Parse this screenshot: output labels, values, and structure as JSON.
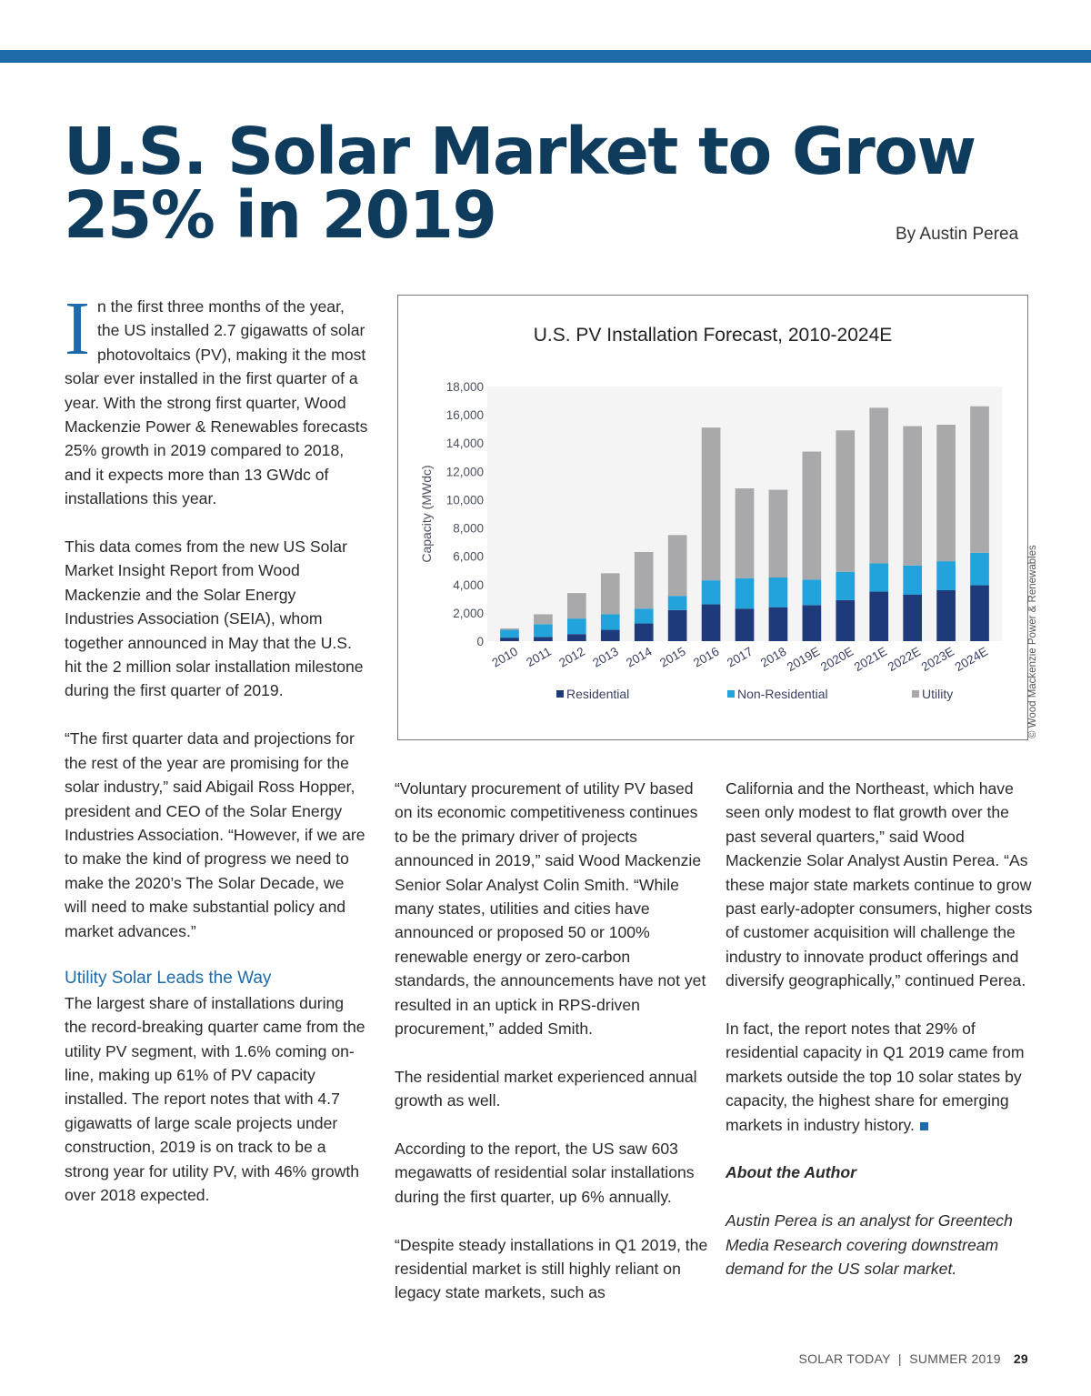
{
  "header": {
    "title_line1": "U.S. Solar Market to Grow",
    "title_line2": "25% in 2019",
    "byline": "By Austin Perea"
  },
  "column1": {
    "dropcap": "I",
    "para1": "n the first three months of the year, the US installed 2.7 gigawatts of solar photovoltaics (PV), making it the most solar ever installed in the first quarter of a year. With the strong first quarter, Wood Mackenzie Power & Renewables forecasts 25% growth in 2019 compared to 2018, and it expects more than 13 GWdc of installations this year.",
    "para2": "This data comes from the new US Solar Market Insight Report from Wood Mackenzie and the Solar Energy Industries Association (SEIA), whom together announced in May that the U.S. hit the 2 million solar installation milestone during the first quarter of 2019.",
    "para3": "“The first quarter data and projections for the rest of the year are promising for the solar industry,” said Abigail Ross Hopper, president and CEO of the Solar Energy Industries Association. “However, if we are to make the kind of progress we need to make the 2020’s The Solar Decade, we will need to make substantial policy and market advances.”",
    "subhead": "Utility Solar Leads the Way",
    "para4": "The largest share of installations during the record-breaking quarter came from the utility PV segment, with 1.6% coming on-line, making up 61% of PV capacity installed. The report notes that with 4.7 gigawatts of large scale projects under construction, 2019 is on track to be a strong year for utility PV, with 46% growth over 2018 expected."
  },
  "column2": {
    "para1": "“Voluntary procurement of utility PV based on its economic competitiveness continues to be the primary driver of projects announced in 2019,” said Wood Mackenzie Senior Solar Analyst Colin Smith. “While many states, utilities and cities have announced or proposed 50 or 100% renewable energy or zero-carbon standards, the announcements have not yet resulted in an uptick in RPS-driven procurement,” added Smith.",
    "para2": "The residential market experienced annual growth as well.",
    "para3": "According to the report, the US saw 603 megawatts of residential solar installations during the first quarter, up 6% annually.",
    "para4": "“Despite steady installations in Q1 2019, the residential market is still highly reliant on legacy state markets, such as"
  },
  "column3": {
    "para1": "California and the Northeast, which have seen only modest to flat growth over the past several quarters,” said Wood Mackenzie Solar Analyst Austin Perea. “As these major state markets continue to grow past early-adopter consumers, higher costs of customer acquisition will challenge the industry to innovate product offerings and diversify geographically,” continued Perea.",
    "para2": "In fact, the report notes that 29% of residential capacity in Q1 2019 came from markets outside the top 10 solar states by capacity, the highest share for emerging markets in industry history.",
    "author_heading": "About the Author",
    "author_bio": "Austin Perea is an analyst for Greentech Media Research covering downstream demand for the US solar market."
  },
  "chart_credit": "© Wood Mackenzie Power & Renewables",
  "footer": {
    "publication": "SOLAR TODAY  |  SUMMER 2019",
    "page_number": "29"
  },
  "colors": {
    "accent": "#1f6aa8",
    "title": "#0f3c5c",
    "residential": "#1f3a7a",
    "non_residential": "#23a3db",
    "utility": "#a9a9ab",
    "plot_bg": "#f4f4f5"
  },
  "chart_data": {
    "type": "bar",
    "stacked": true,
    "title": "U.S. PV Installation Forecast, 2010-2024E",
    "xlabel": "",
    "ylabel": "Capacity (MWdc)",
    "ylim": [
      0,
      18000
    ],
    "yticks": [
      0,
      2000,
      4000,
      6000,
      8000,
      10000,
      12000,
      14000,
      16000,
      18000
    ],
    "ytick_labels": [
      "0",
      "2,000",
      "4,000",
      "6,000",
      "8,000",
      "10,000",
      "12,000",
      "14,000",
      "16,000",
      "18,000"
    ],
    "grid": false,
    "legend_position": "bottom",
    "categories": [
      "2010",
      "2011",
      "2012",
      "2013",
      "2014",
      "2015",
      "2016",
      "2017",
      "2018",
      "2019E",
      "2020E",
      "2021E",
      "2022E",
      "2023E",
      "2024E"
    ],
    "series": [
      {
        "name": "Residential",
        "color": "#1f3a7a",
        "values": [
          250,
          300,
          500,
          800,
          1250,
          2200,
          2600,
          2300,
          2400,
          2550,
          2900,
          3500,
          3300,
          3600,
          3950
        ]
      },
      {
        "name": "Non-Residential",
        "color": "#23a3db",
        "values": [
          550,
          900,
          1100,
          1100,
          1050,
          1000,
          1700,
          2150,
          2100,
          1800,
          2000,
          2000,
          2050,
          2050,
          2300
        ]
      },
      {
        "name": "Utility",
        "color": "#a9a9ab",
        "values": [
          100,
          700,
          1800,
          2900,
          4000,
          4300,
          10800,
          6350,
          6200,
          9050,
          10000,
          11000,
          9850,
          9650,
          10350
        ]
      }
    ]
  }
}
